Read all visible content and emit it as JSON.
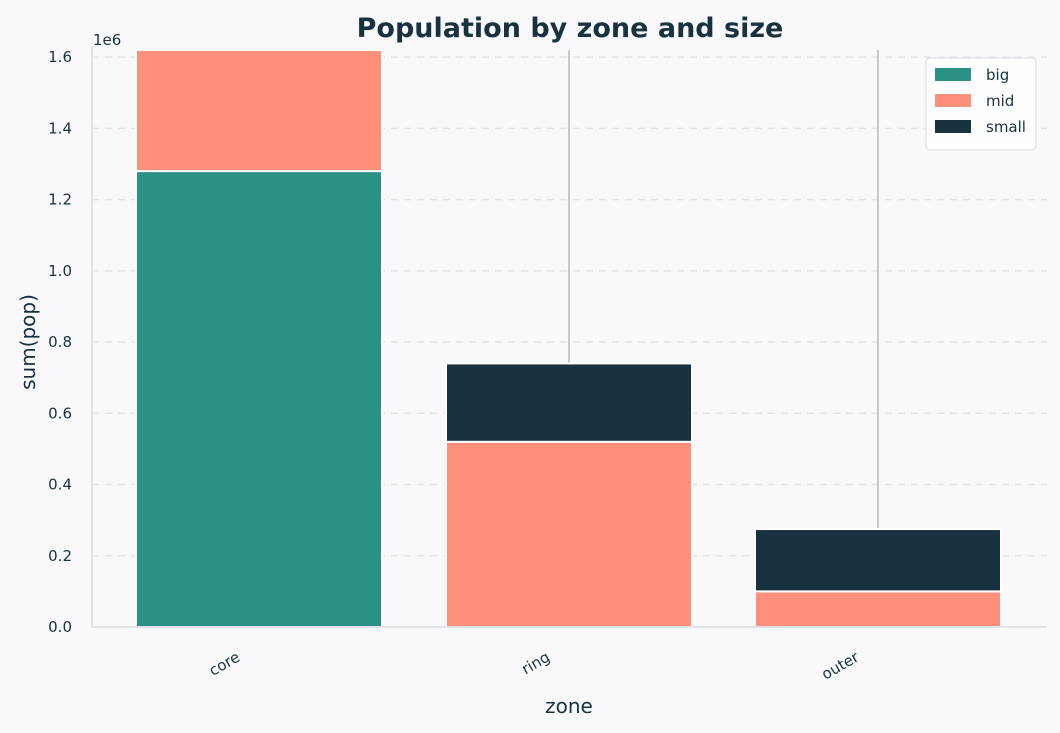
{
  "chart_data": {
    "type": "bar",
    "stacked": true,
    "title": "Population by zone and size",
    "xlabel": "zone",
    "ylabel": "sum(pop)",
    "y_offset_label": "1e6",
    "categories": [
      "core",
      "ring",
      "outer"
    ],
    "series": [
      {
        "name": "big",
        "color": "#2b9184",
        "values": [
          1280000,
          0,
          0
        ]
      },
      {
        "name": "mid",
        "color": "#fd8f7b",
        "values": [
          340000,
          520000,
          100000
        ]
      },
      {
        "name": "small",
        "color": "#183240",
        "values": [
          0,
          220000,
          175000
        ]
      }
    ],
    "error_bars_upper": [
      1620000,
      1620000,
      1620000
    ],
    "ylim": [
      0,
      1620000
    ],
    "yticks": [
      0,
      200000,
      400000,
      600000,
      800000,
      1000000,
      1200000,
      1400000,
      1600000
    ],
    "ytick_labels": [
      "0.0",
      "0.2",
      "0.4",
      "0.6",
      "0.8",
      "1.0",
      "1.2",
      "1.4",
      "1.6"
    ],
    "grid": "horizontal dashed",
    "legend_position": "top-right"
  }
}
